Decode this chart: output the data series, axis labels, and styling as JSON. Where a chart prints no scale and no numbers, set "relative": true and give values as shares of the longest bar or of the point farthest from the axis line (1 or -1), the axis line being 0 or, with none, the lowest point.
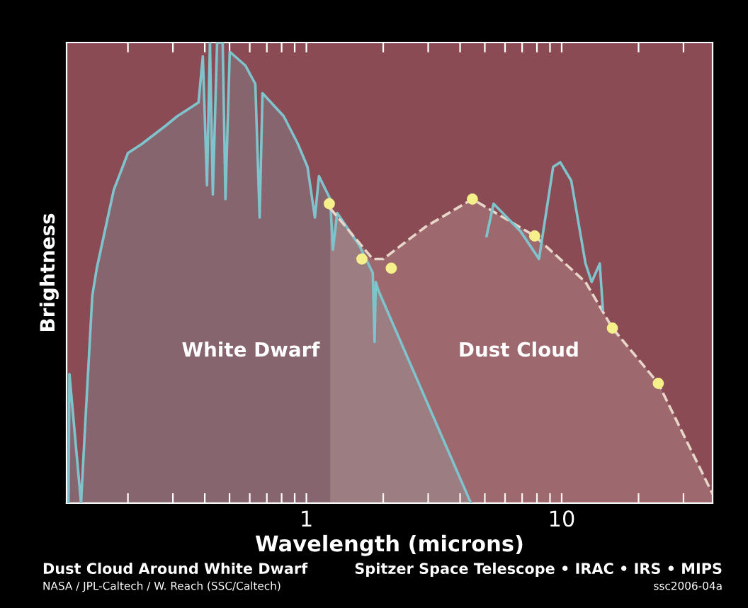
{
  "chart_data": {
    "type": "line",
    "title": "Dust Cloud Around White Dwarf",
    "xlabel": "Wavelength (microns)",
    "ylabel": "Brightness",
    "relative": true,
    "log": "x",
    "grid": false,
    "legend": false,
    "xlim": [
      0.115,
      39
    ],
    "xticks": [
      {
        "value": 0.2,
        "label": null
      },
      {
        "value": 0.3,
        "label": null
      },
      {
        "value": 0.4,
        "label": null
      },
      {
        "value": 0.5,
        "label": null
      },
      {
        "value": 0.6,
        "label": null
      },
      {
        "value": 0.7,
        "label": null
      },
      {
        "value": 0.8,
        "label": null
      },
      {
        "value": 0.9,
        "label": null
      },
      1,
      {
        "value": 2,
        "label": null
      },
      {
        "value": 3,
        "label": null
      },
      {
        "value": 4,
        "label": null
      },
      {
        "value": 5,
        "label": null
      },
      {
        "value": 6,
        "label": null
      },
      {
        "value": 7,
        "label": null
      },
      {
        "value": 8,
        "label": null
      },
      {
        "value": 9,
        "label": null
      },
      10,
      {
        "value": 20,
        "label": null
      },
      {
        "value": 30,
        "label": null
      }
    ],
    "series": [
      {
        "type": "area",
        "color": "#7fc3cc",
        "line_style": "solid",
        "marker": "none",
        "x": [
          0.117,
          0.118,
          0.131,
          0.136,
          0.145,
          0.151,
          0.176,
          0.2,
          0.227,
          0.282,
          0.312,
          0.355,
          0.378,
          0.393,
          0.408,
          0.419,
          0.43,
          0.447,
          0.47,
          0.482,
          0.501,
          0.577,
          0.631,
          0.656,
          0.673,
          0.815,
          0.926,
          1.01,
          1.08,
          1.12,
          1.24,
          1.27,
          1.32,
          1.61,
          1.82,
          1.85,
          1.87,
          1.92,
          4.41
        ],
        "values": [
          0,
          0.28,
          0,
          0.17,
          0.45,
          0.51,
          0.68,
          0.76,
          0.78,
          0.82,
          0.84,
          0.86,
          0.87,
          0.97,
          0.69,
          1.0,
          0.67,
          1.0,
          1.0,
          0.66,
          0.98,
          0.95,
          0.91,
          0.62,
          0.89,
          0.84,
          0.78,
          0.73,
          0.62,
          0.71,
          0.66,
          0.55,
          0.63,
          0.56,
          0.5,
          0.35,
          0.48,
          0.46,
          0
        ]
      },
      {
        "type": "area",
        "color": "#e8d6c8",
        "line_style": "dashed",
        "marker": "none",
        "x": [
          1.24,
          1.82,
          2.0,
          2.93,
          4.47,
          7.84,
          12.4,
          15.8,
          23.9,
          39
        ],
        "values": [
          0.64,
          0.53,
          0.53,
          0.6,
          0.66,
          0.58,
          0.48,
          0.38,
          0.26,
          0.02
        ]
      },
      {
        "color": "#7fc3cc",
        "line_style": "solid",
        "marker": "none",
        "x": [
          5.08,
          5.41,
          6.9,
          8.15,
          9.26,
          9.87,
          10.9,
          12.4,
          13.1,
          14.1,
          14.5
        ],
        "values": [
          0.58,
          0.65,
          0.59,
          0.53,
          0.73,
          0.74,
          0.7,
          0.52,
          0.48,
          0.52,
          0.42
        ]
      },
      {
        "type": "scatter",
        "color": "#f5f08a",
        "marker": "circle",
        "x": [
          1.23,
          1.65,
          2.15,
          4.47,
          7.84,
          15.8,
          23.9
        ],
        "values": [
          0.65,
          0.53,
          0.51,
          0.66,
          0.58,
          0.38,
          0.26
        ]
      }
    ],
    "annotations": [
      "White Dwarf",
      "Dust Cloud",
      "Spitzer Space Telescope • IRAC • IRS • MIPS",
      "NASA / JPL-Caltech / W. Reach (SSC/Caltech)",
      "ssc2006-04a"
    ]
  }
}
